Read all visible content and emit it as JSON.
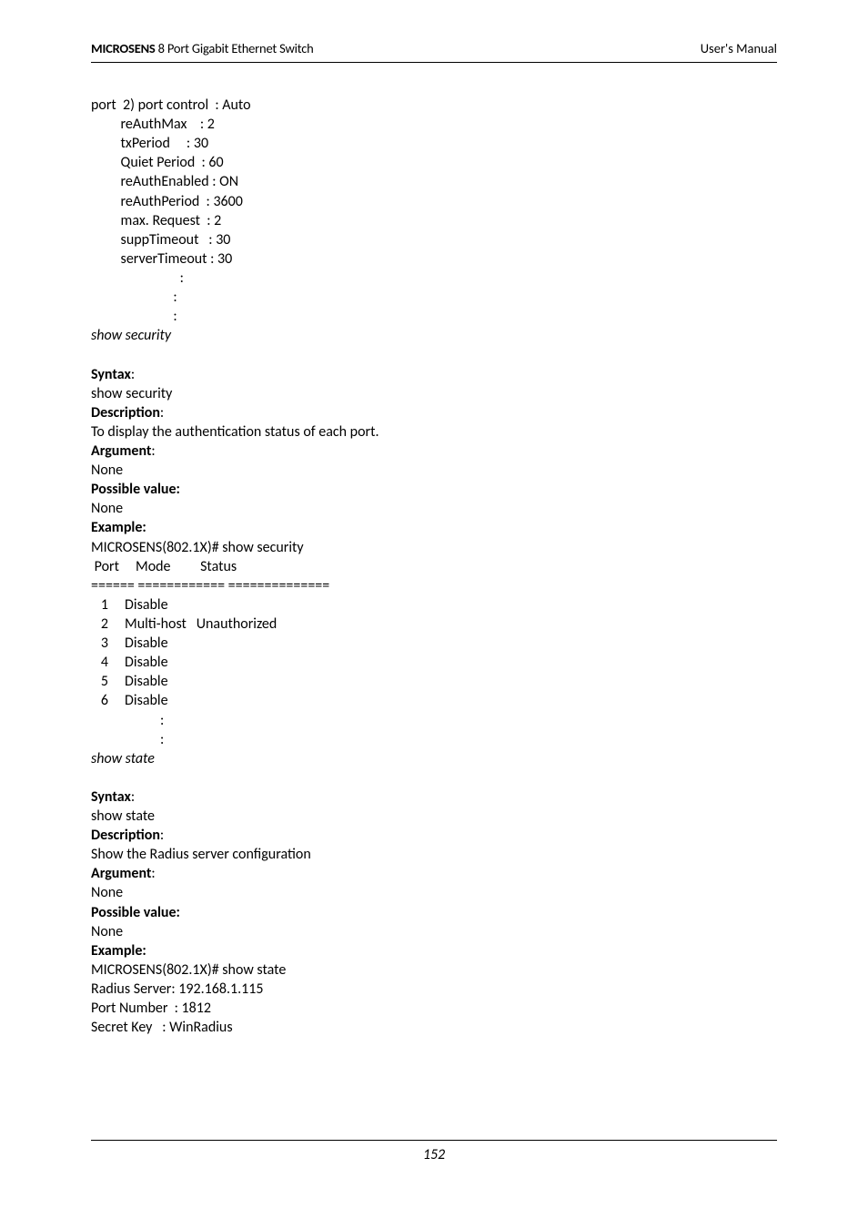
{
  "header": {
    "brand_bold": "MICROSENS",
    "brand_rest": " 8 Port Gigabit Ethernet Switch",
    "right": "User's Manual"
  },
  "block_port2": "port  2) port control  : Auto\n         reAuthMax    : 2\n         txPeriod     : 30\n         Quiet Period  : 60\n         reAuthEnabled : ON\n         reAuthPeriod  : 3600\n         max. Request  : 2\n         suppTimeout   : 30\n         serverTimeout : 30\n                           :\n                         :\n                         :",
  "show_security_title": "show security",
  "sec": {
    "syntax_h": "Syntax",
    "syntax_v": "show security",
    "desc_h": "Description",
    "desc_pre": "To display the ",
    "desc_auth": "authentication",
    "desc_post": " status of each port.",
    "arg_h": "Argument",
    "arg_v": "None",
    "pv_h": "Possible value:",
    "pv_v": "None",
    "ex_h": "Example:",
    "ex_block": "MICROSENS(802.1X)# show security\n Port     Mode         Status\n====== ============ ==============\n   1     Disable\n   2     Multi-host   Unauthorized\n   3     Disable\n   4     Disable\n   5     Disable\n   6     Disable\n                     :\n                     :"
  },
  "show_state_title": "show state",
  "state": {
    "syntax_h": "Syntax",
    "syntax_v": "show state",
    "desc_h": "Description",
    "desc_v": "Show the Radius server configuration",
    "arg_h": "Argument",
    "arg_v": "None",
    "pv_h": "Possible value:",
    "pv_v": "None",
    "ex_h": "Example:",
    "ex_block": "MICROSENS(802.1X)# show state\nRadius Server: 192.168.1.115\nPort Number  : 1812\nSecret Key   : WinRadius"
  },
  "page_number": "152"
}
